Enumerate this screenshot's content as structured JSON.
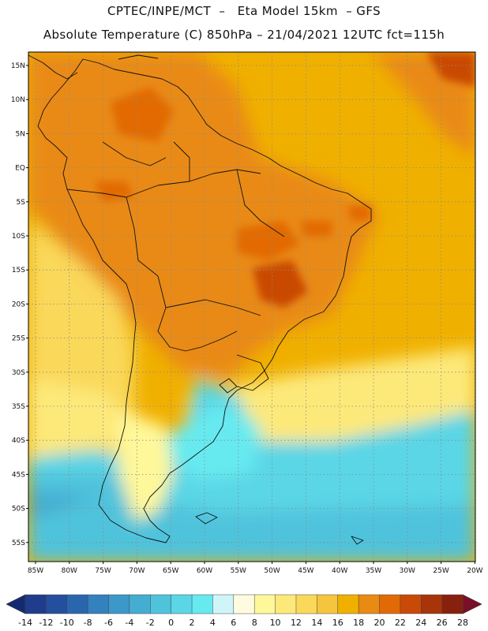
{
  "header": {
    "line1": "CPTEC/INPE/MCT  –   Eta Model 15km  – GFS",
    "line2": "Absolute Temperature (C) 850hPa – 21/04/2021 12UTC fct=115h"
  },
  "map": {
    "lat_labels": [
      "15N",
      "10N",
      "5N",
      "EQ",
      "5S",
      "10S",
      "15S",
      "20S",
      "25S",
      "30S",
      "35S",
      "40S",
      "45S",
      "50S",
      "55S"
    ],
    "lon_labels": [
      "85W",
      "80W",
      "75W",
      "70W",
      "65W",
      "60W",
      "55W",
      "50W",
      "45W",
      "40W",
      "35W",
      "30W",
      "25W",
      "20W"
    ],
    "field_description": "850hPa temperature field over South America"
  },
  "colorbar": {
    "labels": [
      "-14",
      "-12",
      "-10",
      "-8",
      "-6",
      "-4",
      "-2",
      "0",
      "2",
      "4",
      "6",
      "8",
      "10",
      "12",
      "14",
      "16",
      "18",
      "20",
      "22",
      "24",
      "26",
      "28"
    ],
    "colors": [
      "#1f3d8c",
      "#234f9e",
      "#2a66ae",
      "#3381bd",
      "#3c98c8",
      "#45add2",
      "#4fc3dc",
      "#5ad6e6",
      "#66eaf0",
      "#cff5f8",
      "#fffbe0",
      "#fff89a",
      "#fde97a",
      "#fad85a",
      "#f5c53e",
      "#f0b000",
      "#e98a12",
      "#e26a06",
      "#c94a06",
      "#a8340a",
      "#88200e"
    ],
    "low_arrow_color": "#142a70",
    "high_arrow_color": "#7a0f2a"
  }
}
